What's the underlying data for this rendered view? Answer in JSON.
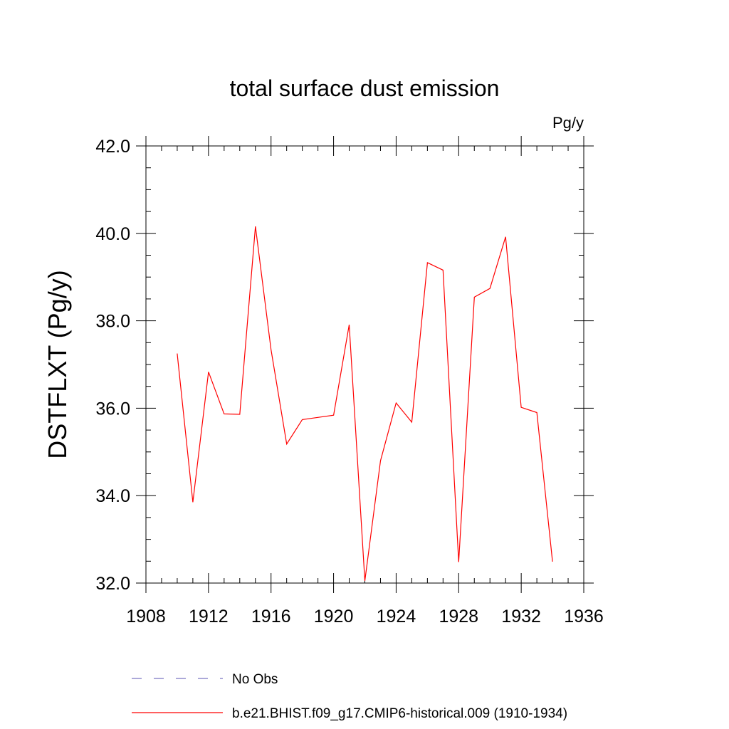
{
  "chart_data": {
    "type": "line",
    "title": "total surface dust emission",
    "units": "Pg/y",
    "xlabel": "",
    "ylabel": "DSTFLXT  (Pg/y)",
    "xlim": [
      1908,
      1936
    ],
    "ylim": [
      32.0,
      42.0
    ],
    "x_ticks": [
      1908,
      1912,
      1916,
      1920,
      1924,
      1928,
      1932,
      1936
    ],
    "x_tick_labels": [
      "1908",
      "1912",
      "1916",
      "1920",
      "1924",
      "1928",
      "1932",
      "1936"
    ],
    "y_ticks": [
      32,
      34,
      36,
      38,
      40,
      42
    ],
    "y_tick_labels": [
      "32.0",
      "34.0",
      "36.0",
      "38.0",
      "40.0",
      "42.0"
    ],
    "grid": false,
    "legend_position": "bottom",
    "series": [
      {
        "name": "No Obs",
        "color": "#7a76c2",
        "dash": "dashed",
        "x": [],
        "y": []
      },
      {
        "name": "b.e21.BHIST.f09_g17.CMIP6-historical.009 (1910-1934)",
        "color": "#ff0000",
        "dash": "solid",
        "x": [
          1910,
          1911,
          1912,
          1913,
          1914,
          1915,
          1916,
          1917,
          1918,
          1919,
          1920,
          1921,
          1922,
          1923,
          1924,
          1925,
          1926,
          1927,
          1928,
          1929,
          1930,
          1931,
          1932,
          1933,
          1934
        ],
        "y": [
          37.25,
          33.85,
          36.83,
          35.87,
          35.86,
          40.16,
          37.34,
          35.18,
          35.74,
          35.79,
          35.84,
          37.91,
          32.05,
          34.8,
          36.12,
          35.68,
          39.33,
          39.16,
          32.48,
          38.54,
          38.74,
          39.92,
          36.02,
          35.9,
          32.49
        ]
      }
    ]
  }
}
